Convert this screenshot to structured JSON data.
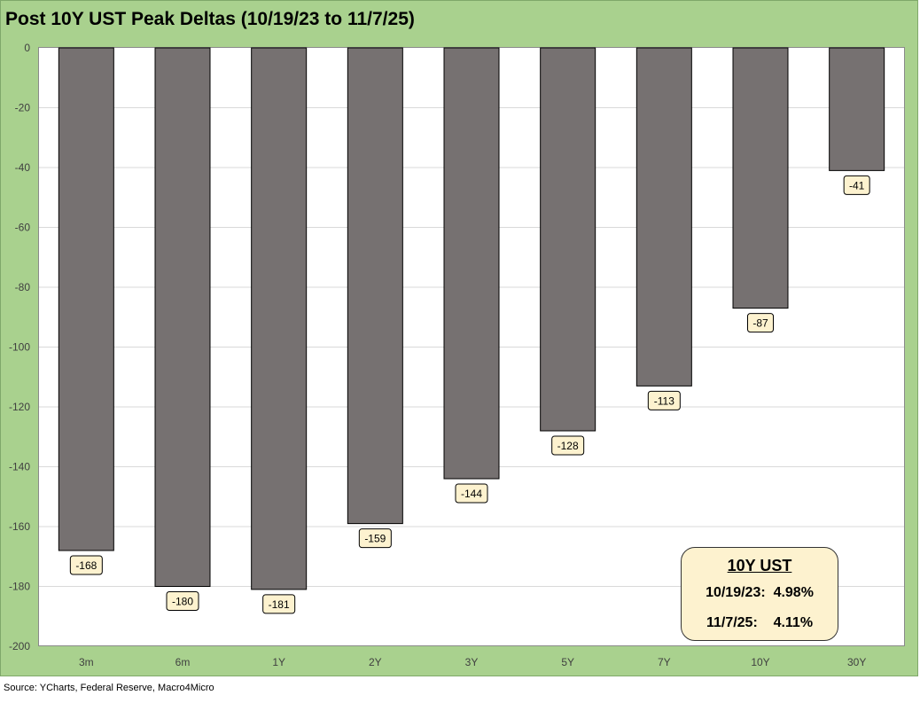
{
  "title": "Post 10Y UST Peak Deltas (10/19/23 to 11/7/25)",
  "source": "Source: YCharts, Federal Reserve, Macro4Micro",
  "colors": {
    "frame": "#a9d18e",
    "bar": "#767171",
    "label_fill": "#fdf2cf",
    "grid": "#d9d9d9"
  },
  "info_box": {
    "title": "10Y UST",
    "row1": "10/19/23:  4.98%",
    "row2": "11/7/25:    4.11%"
  },
  "chart_data": {
    "type": "bar",
    "title": "Post 10Y UST Peak Deltas (10/19/23 to 11/7/25)",
    "categories": [
      "3m",
      "6m",
      "1Y",
      "2Y",
      "3Y",
      "5Y",
      "7Y",
      "10Y",
      "30Y"
    ],
    "values": [
      -168,
      -180,
      -181,
      -159,
      -144,
      -128,
      -113,
      -87,
      -41
    ],
    "ylim": [
      -200,
      0
    ],
    "yticks": [
      0,
      -20,
      -40,
      -60,
      -80,
      -100,
      -120,
      -140,
      -160,
      -180,
      -200
    ],
    "grid": true,
    "legend": "none",
    "xlabel": "",
    "ylabel": ""
  }
}
